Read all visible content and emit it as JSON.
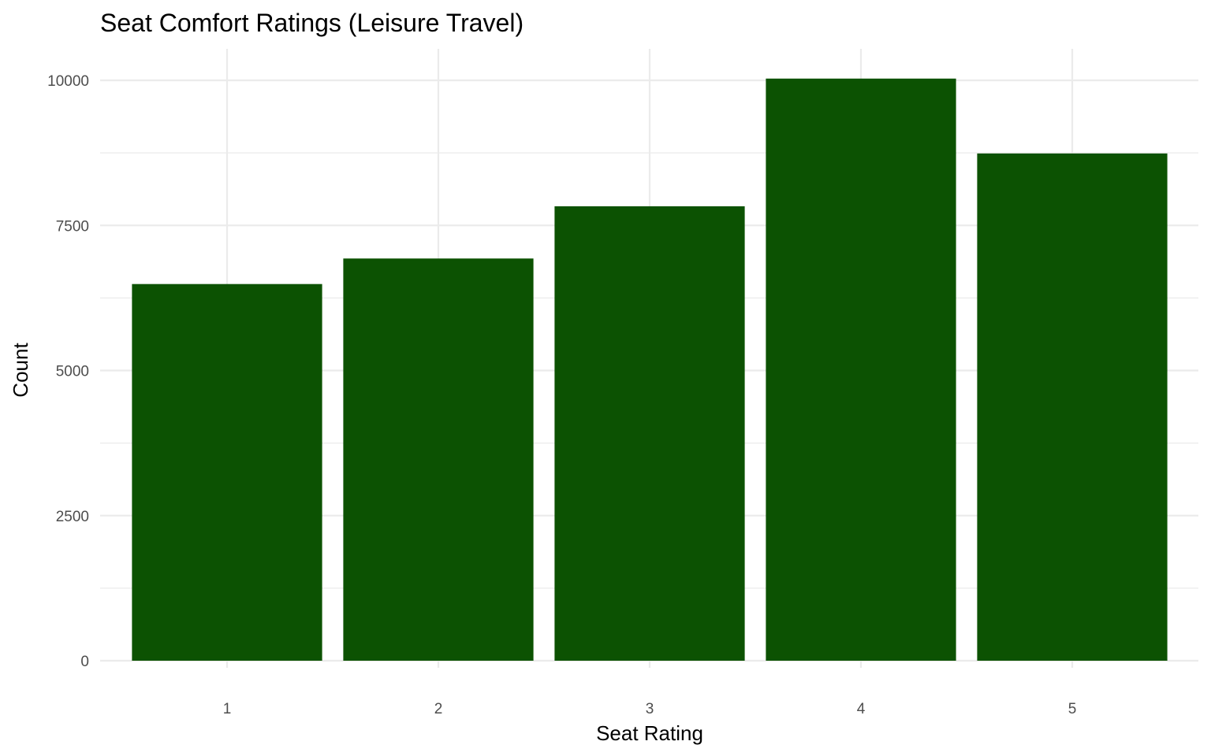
{
  "chart_data": {
    "type": "bar",
    "title": "Seat Comfort Ratings (Leisure Travel)",
    "xlabel": "Seat Rating",
    "ylabel": "Count",
    "categories": [
      "1",
      "2",
      "3",
      "4",
      "5"
    ],
    "values": [
      6490,
      6930,
      7830,
      10030,
      8740
    ],
    "ylim": [
      0,
      10500
    ],
    "y_ticks": [
      0,
      2500,
      5000,
      7500,
      10000
    ],
    "y_tick_labels": [
      "0",
      "2500",
      "5000",
      "7500",
      "10000"
    ],
    "grid": true,
    "bar_color": "#0c5202"
  }
}
